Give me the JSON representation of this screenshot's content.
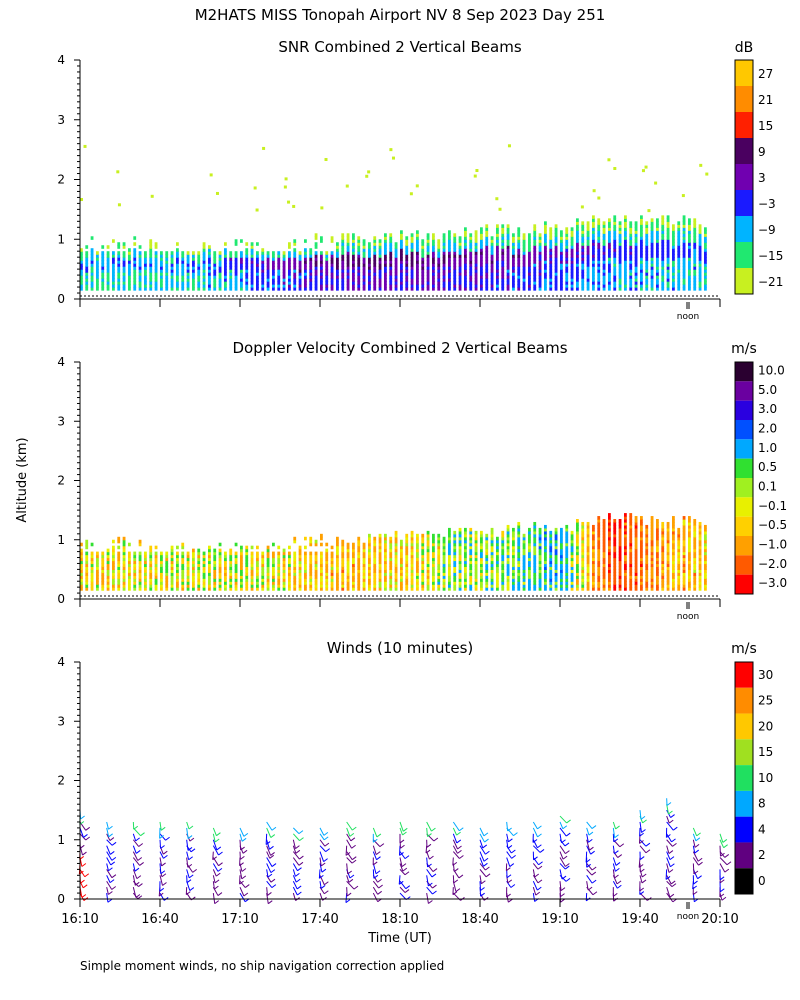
{
  "header": {
    "title": "M2HATS MISS Tonopah Airport NV   8 Sep 2023 Day 251",
    "footnote": "Simple moment winds, no ship navigation correction applied"
  },
  "axes": {
    "ylabel": "Altitude (km)",
    "xlabel": "Time (UT)",
    "x_ticks": [
      "16:10",
      "16:40",
      "17:10",
      "17:40",
      "18:10",
      "18:40",
      "19:10",
      "19:40",
      "20:10"
    ],
    "y_ticks": [
      "0",
      "1",
      "2",
      "3",
      "4"
    ],
    "ylim": [
      0,
      4
    ],
    "noon_label": "noon"
  },
  "chart_data": [
    {
      "type": "heatmap",
      "title": "SNR Combined 2 Vertical Beams",
      "xlabel": "",
      "ylabel": "Altitude (km)",
      "xlim": [
        "16:10",
        "20:10"
      ],
      "ylim": [
        0,
        4
      ],
      "colorbar": {
        "units": "dB",
        "labels": [
          "27",
          "21",
          "15",
          "9",
          "3",
          "−3",
          "−9",
          "−15",
          "−21"
        ],
        "colors": [
          "#ffc800",
          "#ff8c00",
          "#ff2000",
          "#4a0060",
          "#7000b0",
          "#1a1aff",
          "#00b4ff",
          "#20e870",
          "#c8f020"
        ]
      },
      "profile": {
        "x_min": [
          0,
          20,
          40,
          60,
          80,
          100,
          120,
          140,
          160,
          180,
          200,
          220,
          240
        ],
        "top_km": [
          0.95,
          0.95,
          0.85,
          0.9,
          0.95,
          1.0,
          1.05,
          1.1,
          1.15,
          1.2,
          1.35,
          1.3,
          1.2
        ],
        "snr_peak_db": [
          -5,
          -5,
          -4,
          0,
          6,
          9,
          9,
          8,
          6,
          3,
          0,
          -2,
          -3
        ]
      }
    },
    {
      "type": "heatmap",
      "title": "Doppler Velocity Combined 2 Vertical Beams",
      "xlabel": "",
      "ylabel": "Altitude (km)",
      "xlim": [
        "16:10",
        "20:10"
      ],
      "ylim": [
        0,
        4
      ],
      "colorbar": {
        "units": "m/s",
        "labels": [
          "10.0",
          "5.0",
          "3.0",
          "2.0",
          "1.0",
          "0.5",
          "0.1",
          "−0.1",
          "−0.5",
          "−1.0",
          "−2.0",
          "−3.0"
        ],
        "colors": [
          "#2a0030",
          "#6a00a0",
          "#2a00e0",
          "#0050ff",
          "#00a8ff",
          "#30e030",
          "#a0f020",
          "#e8f000",
          "#ffd000",
          "#ffa000",
          "#ff5a00",
          "#ff0000"
        ]
      },
      "profile": {
        "x_min": [
          0,
          20,
          40,
          60,
          80,
          100,
          120,
          140,
          160,
          180,
          200,
          220,
          240
        ],
        "top_km": [
          0.9,
          0.95,
          0.85,
          0.9,
          0.95,
          1.0,
          1.05,
          1.1,
          1.15,
          1.2,
          1.35,
          1.3,
          1.2
        ],
        "typical_velocity_ms": [
          -0.3,
          -0.3,
          -0.2,
          -0.1,
          -0.5,
          -0.8,
          -0.5,
          0.2,
          0.5,
          1.0,
          -2.5,
          -1.0,
          -0.5
        ]
      }
    },
    {
      "type": "scatter",
      "subtype": "wind_barbs",
      "title": "Winds (10 minutes)",
      "xlabel": "Time (UT)",
      "ylabel": "Altitude (km)",
      "xlim": [
        "16:10",
        "20:10"
      ],
      "ylim": [
        0,
        4
      ],
      "colorbar": {
        "units": "m/s",
        "labels": [
          "30",
          "25",
          "20",
          "15",
          "10",
          "8",
          "4",
          "2",
          "0"
        ],
        "colors": [
          "#ff0000",
          "#ff8c00",
          "#ffc800",
          "#a0e020",
          "#20e060",
          "#00a8ff",
          "#0000ff",
          "#600080",
          "#000000"
        ]
      },
      "profile_times_min": [
        0,
        10,
        20,
        30,
        40,
        50,
        60,
        70,
        80,
        90,
        100,
        110,
        120,
        130,
        140,
        150,
        160,
        170,
        180,
        190,
        200,
        210,
        220,
        230,
        240
      ],
      "profile_top_km": [
        1.6,
        1.3,
        1.4,
        1.4,
        1.4,
        1.2,
        1.2,
        1.4,
        1.2,
        1.2,
        1.3,
        1.2,
        1.3,
        1.4,
        1.3,
        1.2,
        1.3,
        1.3,
        1.5,
        1.3,
        1.3,
        1.6,
        1.8,
        1.2,
        1.1
      ],
      "typical_speed_ms": 5,
      "typical_direction_deg": 160
    }
  ]
}
